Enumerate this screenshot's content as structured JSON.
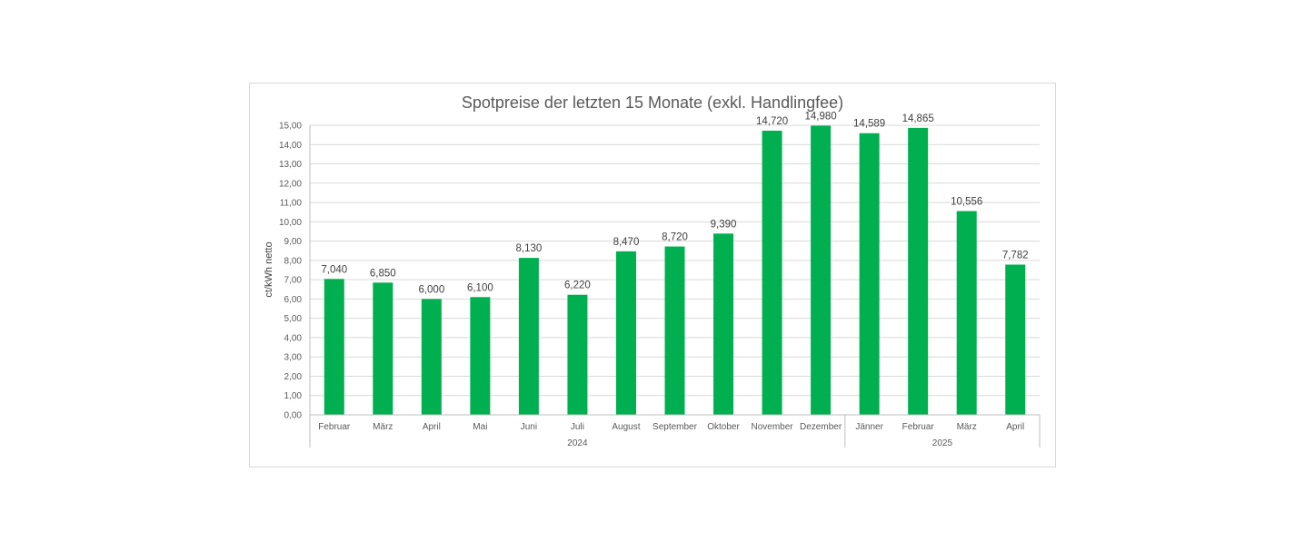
{
  "chart_data": {
    "type": "bar",
    "title": "Spotpreise der letzten 15 Monate (exkl. Handlingfee)",
    "ylabel": "ct/kWh netto",
    "ylim": [
      0,
      15
    ],
    "ytick_step": 1,
    "yticks": [
      "0,00",
      "1,00",
      "2,00",
      "3,00",
      "4,00",
      "5,00",
      "6,00",
      "7,00",
      "8,00",
      "9,00",
      "10,00",
      "11,00",
      "12,00",
      "13,00",
      "14,00",
      "15,00"
    ],
    "categories": [
      "Februar",
      "März",
      "April",
      "Mai",
      "Juni",
      "Juli",
      "August",
      "September",
      "Oktober",
      "November",
      "Dezember",
      "Jänner",
      "Februar",
      "März",
      "April"
    ],
    "groups": [
      {
        "label": "2024",
        "count": 11
      },
      {
        "label": "2025",
        "count": 4
      }
    ],
    "values": [
      7.04,
      6.85,
      6.0,
      6.1,
      8.13,
      6.22,
      8.47,
      8.72,
      9.39,
      14.72,
      14.98,
      14.589,
      14.865,
      10.556,
      7.782
    ],
    "value_labels": [
      "7,040",
      "6,850",
      "6,000",
      "6,100",
      "8,130",
      "6,220",
      "8,470",
      "8,720",
      "9,390",
      "14,720",
      "14,980",
      "14,589",
      "14,865",
      "10,556",
      "7,782"
    ],
    "grid": true,
    "legend": "none",
    "colors": {
      "bar": "#00b050",
      "grid": "#d9d9d9",
      "axis": "#bfbfbf",
      "text": "#595959"
    }
  }
}
